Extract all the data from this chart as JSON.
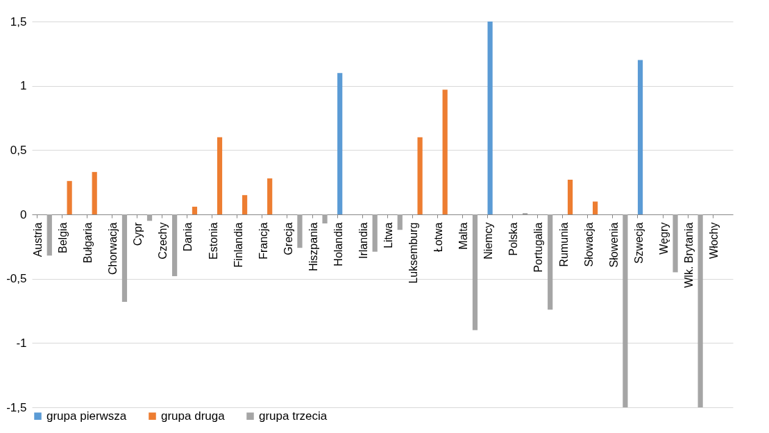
{
  "chart_data": {
    "type": "bar",
    "categories": [
      "Austria",
      "Belgia",
      "Bułgaria",
      "Chorwacja",
      "Cypr",
      "Czechy",
      "Dania",
      "Estonia",
      "Finlandia",
      "Francja",
      "Grecja",
      "Hiszpania",
      "Holandia",
      "Irlandia",
      "Litwa",
      "Luksemburg",
      "Łotwa",
      "Malta",
      "Niemcy",
      "Polska",
      "Portugalia",
      "Rumunia",
      "Słowacja",
      "Słowenia",
      "Szwecja",
      "Węgry",
      "Wlk. Brytania",
      "Włochy"
    ],
    "series": [
      {
        "name": "grupa pierwsza",
        "color": "#5b9bd5",
        "values": [
          null,
          null,
          null,
          null,
          null,
          null,
          null,
          null,
          null,
          null,
          null,
          null,
          1.1,
          null,
          null,
          null,
          null,
          null,
          1.5,
          null,
          null,
          null,
          null,
          null,
          1.2,
          null,
          null,
          null
        ]
      },
      {
        "name": "grupa druga",
        "color": "#ed7d31",
        "values": [
          null,
          0.26,
          0.33,
          null,
          null,
          null,
          0.06,
          0.6,
          0.15,
          0.28,
          null,
          null,
          null,
          null,
          null,
          0.6,
          0.97,
          null,
          null,
          null,
          null,
          0.27,
          0.1,
          null,
          null,
          null,
          null,
          null
        ]
      },
      {
        "name": "grupa trzecia",
        "color": "#a5a5a5",
        "values": [
          -0.32,
          null,
          null,
          -0.68,
          -0.05,
          -0.48,
          null,
          null,
          null,
          null,
          -0.26,
          -0.07,
          null,
          -0.29,
          -0.12,
          null,
          null,
          -0.9,
          null,
          0.01,
          -0.74,
          null,
          null,
          -1.5,
          null,
          -0.45,
          -1.5,
          null
        ]
      }
    ],
    "ylim": [
      -1.5,
      1.5
    ],
    "yticks": [
      {
        "value": -1.5,
        "label": "-1,5"
      },
      -1,
      {
        "value": -0.5,
        "label": "-0,5"
      },
      0,
      {
        "value": 0.5,
        "label": "0,5"
      },
      1,
      {
        "value": 1.5,
        "label": "1,5"
      }
    ],
    "grid": "y",
    "legend": "bottom"
  }
}
